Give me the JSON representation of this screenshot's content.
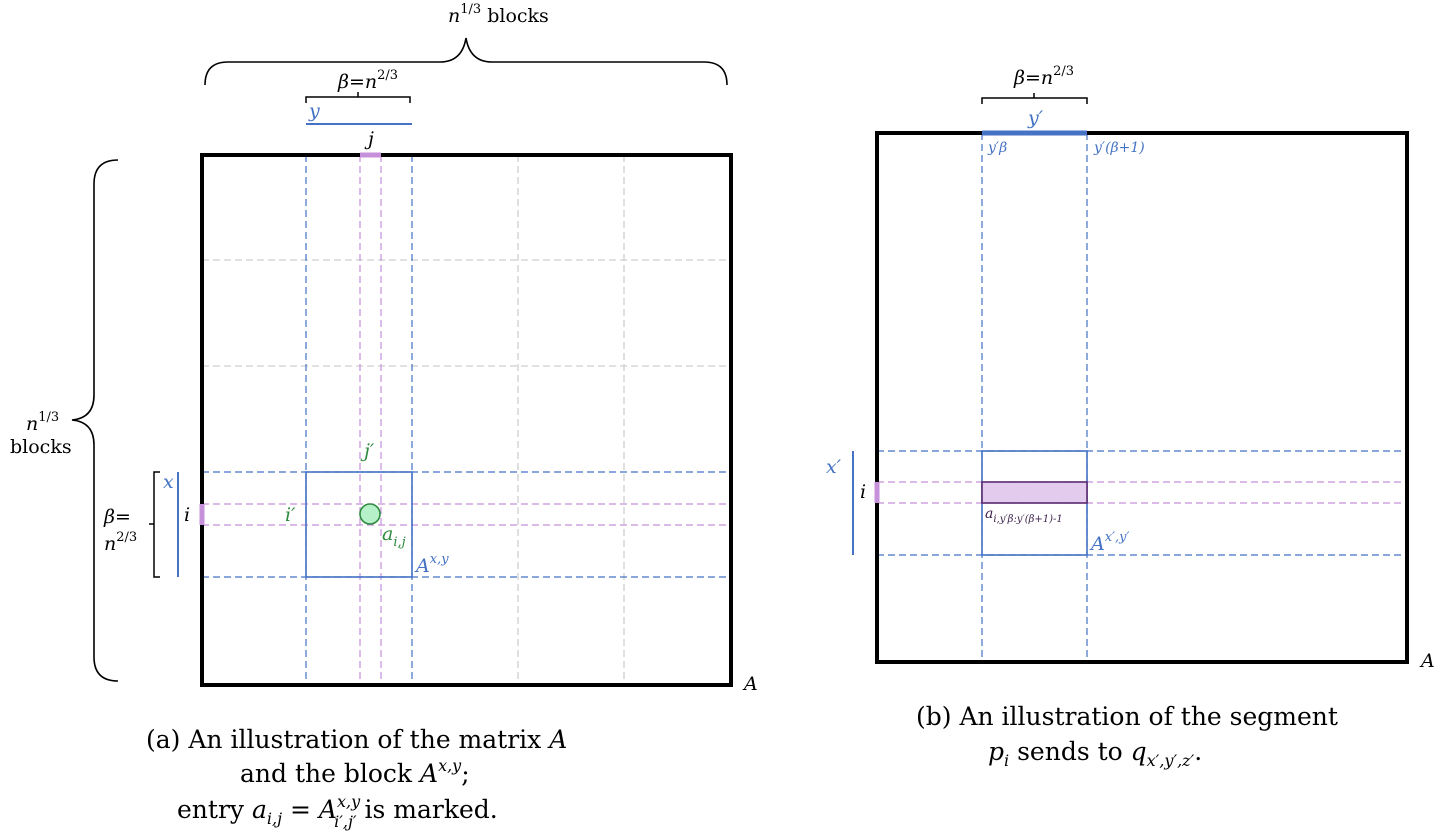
{
  "colors": {
    "blue": "#4472c4",
    "purple": "#c690db",
    "purple_fill": "#e3cbee",
    "green": "#2e8b3e",
    "green_fill": "#b6f0c9",
    "gray_dash": "#cfcfcf",
    "black": "#000000"
  },
  "figure_a": {
    "top_brace_label": {
      "base": "n",
      "sup": "1/3",
      "rest": " blocks"
    },
    "beta_label": {
      "beta": "β",
      "eq": "=",
      "n": "n",
      "sup": "2/3"
    },
    "y_label": "y",
    "j_label": "j",
    "j_prime_label": "j′",
    "i_prime_label": "i′",
    "i_label": "i",
    "x_label": "x",
    "left_brace_label": {
      "base": "n",
      "sup": "1/3",
      "rest": "blocks"
    },
    "left_beta_label": {
      "line1": "β=",
      "n": "n",
      "sup": "2/3"
    },
    "entry_label": {
      "base": "a",
      "sub": "i,j"
    },
    "block_label": {
      "base": "A",
      "sup": "x,y"
    },
    "matrix_label": "A",
    "caption": {
      "line1": "(a) An illustration of the matrix ",
      "line1_math": "A",
      "line2": "and the block ",
      "line2_math": "A",
      "line2_sup": "x,y",
      "line2_end": ";",
      "line3a": "entry ",
      "line3_entry": "a",
      "line3_entry_sub": "i,j",
      "line3_eq": " = ",
      "line3_A": "A",
      "line3_sup": "x,y",
      "line3_sub": "i′,j′",
      "line3_end": " is marked."
    }
  },
  "figure_b": {
    "beta_label": {
      "beta": "β",
      "eq": "=",
      "n": "n",
      "sup": "2/3"
    },
    "y_prime_label": "y′",
    "y_beta_label": "y′β",
    "y_beta_end_label": "y′(β+1)",
    "x_prime_label": "x′",
    "i_label": "i",
    "segment_label": {
      "base": "a",
      "sub": "i,y′β:y′(β+1)-1"
    },
    "block_label": {
      "base": "A",
      "sup": "x′,y′"
    },
    "matrix_label": "A",
    "caption": {
      "line1": "(b) An illustration of the segment",
      "line2_p": "p",
      "line2_p_sub": "i",
      "line2_mid": " sends to ",
      "line2_q": "q",
      "line2_q_sub": "x′,y′,z′",
      "line2_end": "."
    }
  }
}
